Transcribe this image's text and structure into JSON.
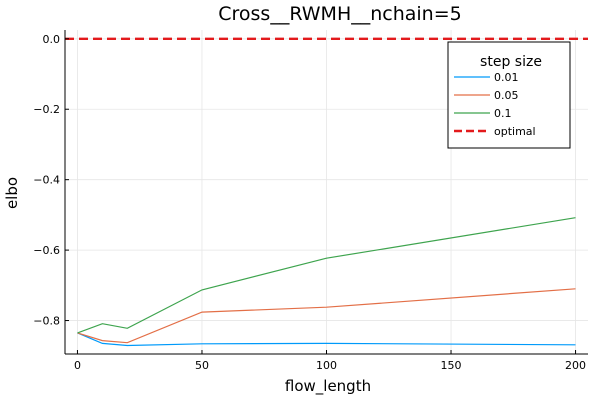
{
  "chart_data": {
    "type": "line",
    "title": "Cross__RWMH__nchain=5",
    "xlabel": "flow_length",
    "ylabel": "elbo",
    "xlim": [
      -5,
      205
    ],
    "ylim": [
      -0.895,
      0.025
    ],
    "xticks": [
      0,
      50,
      100,
      150,
      200
    ],
    "xtick_labels": [
      "0",
      "50",
      "100",
      "150",
      "200"
    ],
    "yticks": [
      0.0,
      -0.2,
      -0.4,
      -0.6,
      -0.8
    ],
    "ytick_labels": [
      "0.0",
      "−0.2",
      "−0.4",
      "−0.6",
      "−0.8"
    ],
    "grid": true,
    "legend_title": "step size",
    "legend_position": "top-right",
    "x": [
      0,
      10,
      20,
      50,
      100,
      200
    ],
    "series": [
      {
        "name": "0.01",
        "color": "#009AFA",
        "values": [
          -0.835,
          -0.865,
          -0.871,
          -0.866,
          -0.865,
          -0.869
        ]
      },
      {
        "name": "0.05",
        "color": "#E36F47",
        "values": [
          -0.835,
          -0.857,
          -0.863,
          -0.776,
          -0.762,
          -0.71
        ]
      },
      {
        "name": "0.1",
        "color": "#3EA44E",
        "values": [
          -0.835,
          -0.809,
          -0.822,
          -0.713,
          -0.623,
          -0.508
        ]
      }
    ],
    "reference_line": {
      "name": "optimal",
      "y": 0.0,
      "color": "#E31A1C",
      "style": "dashed"
    }
  }
}
